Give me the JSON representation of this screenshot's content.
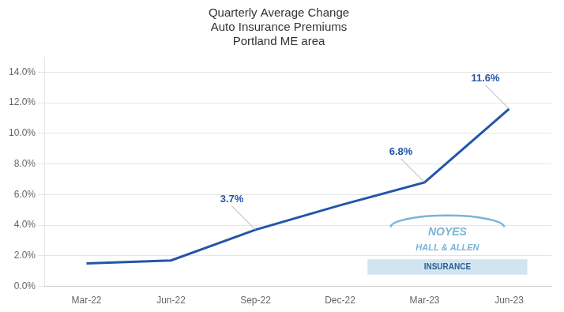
{
  "chart_data": {
    "type": "line",
    "title": "Quarterly Average Change\nAuto Insurance Premiums\nPortland ME area",
    "categories": [
      "Mar-22",
      "Jun-22",
      "Sep-22",
      "Dec-22",
      "Mar-23",
      "Jun-23"
    ],
    "values": [
      1.5,
      1.7,
      3.7,
      5.3,
      6.8,
      11.6
    ],
    "color": "#2255aa",
    "ylim": [
      0,
      15.0
    ],
    "yticks": [
      {
        "value": 0,
        "label": "0.0%"
      },
      {
        "value": 2,
        "label": "2.0%"
      },
      {
        "value": 4,
        "label": "4.0%"
      },
      {
        "value": 6,
        "label": "6.0%"
      },
      {
        "value": 8,
        "label": "8.0%"
      },
      {
        "value": 10,
        "label": "10.0%"
      },
      {
        "value": 12,
        "label": "12.0%"
      },
      {
        "value": 14,
        "label": "14.0%"
      }
    ],
    "grid": true,
    "annotations": [
      {
        "x": "Sep-22",
        "y": 3.7,
        "text": "3.7%"
      },
      {
        "x": "Mar-23",
        "y": 6.8,
        "text": "6.8%"
      },
      {
        "x": "Jun-23",
        "y": 11.6,
        "text": "11.6%"
      },
      {
        "text": "NOYES"
      },
      {
        "text": "HALL & ALLEN"
      },
      {
        "text": "INSURANCE"
      }
    ]
  }
}
